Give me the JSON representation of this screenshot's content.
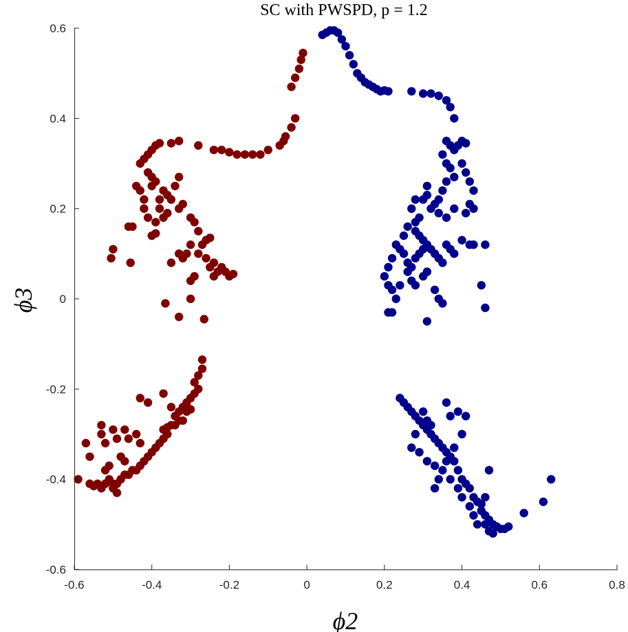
{
  "chart_data": {
    "type": "scatter",
    "title": "SC with PWSPD, p = 1.2",
    "xlabel": "ϕ2",
    "ylabel": "ϕ3",
    "xlim": [
      -0.6,
      0.8
    ],
    "ylim": [
      -0.6,
      0.6
    ],
    "x_ticks": [
      "-0.6",
      "-0.4",
      "-0.2",
      "0",
      "0.2",
      "0.4",
      "0.6",
      "0.8"
    ],
    "y_ticks": [
      "-0.6",
      "-0.4",
      "-0.2",
      "0",
      "0.2",
      "0.4",
      "0.6"
    ],
    "grid": false,
    "series": [
      {
        "color": "#7f0000",
        "points": [
          [
            -0.04,
            0.47
          ],
          [
            -0.03,
            0.49
          ],
          [
            -0.02,
            0.51
          ],
          [
            -0.015,
            0.53
          ],
          [
            -0.01,
            0.545
          ],
          [
            -0.03,
            0.4
          ],
          [
            -0.04,
            0.38
          ],
          [
            -0.055,
            0.36
          ],
          [
            -0.06,
            0.35
          ],
          [
            -0.07,
            0.34
          ],
          [
            -0.1,
            0.33
          ],
          [
            -0.12,
            0.32
          ],
          [
            -0.14,
            0.32
          ],
          [
            -0.16,
            0.32
          ],
          [
            -0.18,
            0.32
          ],
          [
            -0.2,
            0.325
          ],
          [
            -0.22,
            0.33
          ],
          [
            -0.24,
            0.33
          ],
          [
            -0.28,
            0.34
          ],
          [
            -0.33,
            0.35
          ],
          [
            -0.35,
            0.345
          ],
          [
            -0.38,
            0.345
          ],
          [
            -0.39,
            0.34
          ],
          [
            -0.4,
            0.33
          ],
          [
            -0.41,
            0.32
          ],
          [
            -0.42,
            0.31
          ],
          [
            -0.43,
            0.3
          ],
          [
            -0.41,
            0.28
          ],
          [
            -0.4,
            0.27
          ],
          [
            -0.39,
            0.26
          ],
          [
            -0.37,
            0.24
          ],
          [
            -0.36,
            0.23
          ],
          [
            -0.38,
            0.22
          ],
          [
            -0.4,
            0.25
          ],
          [
            -0.42,
            0.2
          ],
          [
            -0.42,
            0.22
          ],
          [
            -0.43,
            0.24
          ],
          [
            -0.44,
            0.25
          ],
          [
            -0.35,
            0.22
          ],
          [
            -0.34,
            0.25
          ],
          [
            -0.33,
            0.27
          ],
          [
            -0.32,
            0.21
          ],
          [
            -0.33,
            0.2
          ],
          [
            -0.36,
            0.19
          ],
          [
            -0.38,
            0.2
          ],
          [
            -0.37,
            0.18
          ],
          [
            -0.39,
            0.17
          ],
          [
            -0.41,
            0.18
          ],
          [
            -0.4,
            0.14
          ],
          [
            -0.39,
            0.145
          ],
          [
            -0.45,
            0.16
          ],
          [
            -0.46,
            0.16
          ],
          [
            -0.3,
            0.18
          ],
          [
            -0.29,
            0.17
          ],
          [
            -0.28,
            0.15
          ],
          [
            -0.27,
            0.12
          ],
          [
            -0.3,
            0.12
          ],
          [
            -0.33,
            0.1
          ],
          [
            -0.35,
            0.08
          ],
          [
            -0.32,
            0.09
          ],
          [
            -0.31,
            0.1
          ],
          [
            -0.28,
            0.1
          ],
          [
            -0.26,
            0.09
          ],
          [
            -0.25,
            0.07
          ],
          [
            -0.24,
            0.08
          ],
          [
            -0.22,
            0.07
          ],
          [
            -0.21,
            0.06
          ],
          [
            -0.23,
            0.06
          ],
          [
            -0.24,
            0.05
          ],
          [
            -0.26,
            0.13
          ],
          [
            -0.25,
            0.135
          ],
          [
            -0.29,
            0.05
          ],
          [
            -0.3,
            0.04
          ],
          [
            -0.19,
            0.055
          ],
          [
            -0.2,
            0.05
          ],
          [
            -0.5,
            0.11
          ],
          [
            -0.505,
            0.09
          ],
          [
            -0.455,
            0.08
          ],
          [
            -0.365,
            -0.01
          ],
          [
            -0.33,
            -0.04
          ],
          [
            -0.265,
            -0.045
          ],
          [
            -0.3,
            0.0
          ],
          [
            -0.27,
            -0.135
          ],
          [
            -0.27,
            -0.155
          ],
          [
            -0.28,
            -0.17
          ],
          [
            -0.29,
            -0.185
          ],
          [
            -0.28,
            -0.2
          ],
          [
            -0.29,
            -0.21
          ],
          [
            -0.3,
            -0.22
          ],
          [
            -0.31,
            -0.23
          ],
          [
            -0.32,
            -0.24
          ],
          [
            -0.3,
            -0.245
          ],
          [
            -0.31,
            -0.25
          ],
          [
            -0.33,
            -0.25
          ],
          [
            -0.34,
            -0.26
          ],
          [
            -0.32,
            -0.27
          ],
          [
            -0.33,
            -0.27
          ],
          [
            -0.35,
            -0.28
          ],
          [
            -0.36,
            -0.285
          ],
          [
            -0.37,
            -0.29
          ],
          [
            -0.36,
            -0.3
          ],
          [
            -0.37,
            -0.31
          ],
          [
            -0.38,
            -0.32
          ],
          [
            -0.39,
            -0.33
          ],
          [
            -0.4,
            -0.34
          ],
          [
            -0.41,
            -0.35
          ],
          [
            -0.42,
            -0.36
          ],
          [
            -0.43,
            -0.37
          ],
          [
            -0.44,
            -0.38
          ],
          [
            -0.45,
            -0.38
          ],
          [
            -0.46,
            -0.39
          ],
          [
            -0.47,
            -0.39
          ],
          [
            -0.48,
            -0.4
          ],
          [
            -0.49,
            -0.41
          ],
          [
            -0.5,
            -0.41
          ],
          [
            -0.51,
            -0.4
          ],
          [
            -0.52,
            -0.41
          ],
          [
            -0.53,
            -0.42
          ],
          [
            -0.54,
            -0.41
          ],
          [
            -0.55,
            -0.415
          ],
          [
            -0.56,
            -0.41
          ],
          [
            -0.52,
            -0.32
          ],
          [
            -0.53,
            -0.3
          ],
          [
            -0.53,
            -0.28
          ],
          [
            -0.5,
            -0.29
          ],
          [
            -0.49,
            -0.31
          ],
          [
            -0.47,
            -0.29
          ],
          [
            -0.46,
            -0.31
          ],
          [
            -0.44,
            -0.3
          ],
          [
            -0.43,
            -0.32
          ],
          [
            -0.48,
            -0.35
          ],
          [
            -0.47,
            -0.36
          ],
          [
            -0.51,
            -0.37
          ],
          [
            -0.52,
            -0.38
          ],
          [
            -0.5,
            -0.42
          ],
          [
            -0.49,
            -0.43
          ],
          [
            -0.56,
            -0.35
          ],
          [
            -0.57,
            -0.32
          ],
          [
            -0.59,
            -0.4
          ],
          [
            -0.43,
            -0.22
          ],
          [
            -0.41,
            -0.23
          ],
          [
            -0.37,
            -0.21
          ],
          [
            -0.35,
            -0.24
          ],
          [
            -0.34,
            -0.28
          ]
        ]
      },
      {
        "color": "#00008b",
        "points": [
          [
            0.04,
            0.585
          ],
          [
            0.05,
            0.59
          ],
          [
            0.06,
            0.595
          ],
          [
            0.07,
            0.595
          ],
          [
            0.08,
            0.59
          ],
          [
            0.09,
            0.575
          ],
          [
            0.1,
            0.56
          ],
          [
            0.11,
            0.54
          ],
          [
            0.12,
            0.52
          ],
          [
            0.13,
            0.5
          ],
          [
            0.14,
            0.49
          ],
          [
            0.15,
            0.48
          ],
          [
            0.16,
            0.475
          ],
          [
            0.17,
            0.47
          ],
          [
            0.18,
            0.465
          ],
          [
            0.19,
            0.46
          ],
          [
            0.2,
            0.462
          ],
          [
            0.21,
            0.46
          ],
          [
            0.27,
            0.46
          ],
          [
            0.3,
            0.455
          ],
          [
            0.32,
            0.455
          ],
          [
            0.34,
            0.45
          ],
          [
            0.36,
            0.44
          ],
          [
            0.37,
            0.425
          ],
          [
            0.38,
            0.4
          ],
          [
            0.36,
            0.35
          ],
          [
            0.37,
            0.34
          ],
          [
            0.38,
            0.33
          ],
          [
            0.39,
            0.34
          ],
          [
            0.4,
            0.35
          ],
          [
            0.41,
            0.345
          ],
          [
            0.35,
            0.32
          ],
          [
            0.36,
            0.3
          ],
          [
            0.37,
            0.29
          ],
          [
            0.38,
            0.27
          ],
          [
            0.4,
            0.3
          ],
          [
            0.41,
            0.28
          ],
          [
            0.42,
            0.26
          ],
          [
            0.43,
            0.24
          ],
          [
            0.42,
            0.21
          ],
          [
            0.41,
            0.19
          ],
          [
            0.43,
            0.2
          ],
          [
            0.36,
            0.26
          ],
          [
            0.35,
            0.24
          ],
          [
            0.34,
            0.22
          ],
          [
            0.33,
            0.21
          ],
          [
            0.32,
            0.2
          ],
          [
            0.34,
            0.19
          ],
          [
            0.36,
            0.18
          ],
          [
            0.38,
            0.2
          ],
          [
            0.31,
            0.25
          ],
          [
            0.31,
            0.23
          ],
          [
            0.3,
            0.22
          ],
          [
            0.28,
            0.22
          ],
          [
            0.27,
            0.2
          ],
          [
            0.29,
            0.18
          ],
          [
            0.28,
            0.17
          ],
          [
            0.26,
            0.16
          ],
          [
            0.28,
            0.15
          ],
          [
            0.29,
            0.14
          ],
          [
            0.3,
            0.13
          ],
          [
            0.31,
            0.12
          ],
          [
            0.32,
            0.11
          ],
          [
            0.33,
            0.1
          ],
          [
            0.34,
            0.09
          ],
          [
            0.35,
            0.08
          ],
          [
            0.36,
            0.12
          ],
          [
            0.37,
            0.11
          ],
          [
            0.38,
            0.1
          ],
          [
            0.25,
            0.14
          ],
          [
            0.24,
            0.11
          ],
          [
            0.25,
            0.1
          ],
          [
            0.26,
            0.08
          ],
          [
            0.27,
            0.07
          ],
          [
            0.28,
            0.09
          ],
          [
            0.29,
            0.1
          ],
          [
            0.3,
            0.11
          ],
          [
            0.23,
            0.12
          ],
          [
            0.22,
            0.09
          ],
          [
            0.21,
            0.07
          ],
          [
            0.2,
            0.05
          ],
          [
            0.21,
            0.03
          ],
          [
            0.22,
            0.02
          ],
          [
            0.23,
            0.0
          ],
          [
            0.24,
            0.03
          ],
          [
            0.26,
            0.06
          ],
          [
            0.27,
            0.04
          ],
          [
            0.28,
            0.03
          ],
          [
            0.3,
            0.05
          ],
          [
            0.31,
            0.06
          ],
          [
            0.33,
            0.02
          ],
          [
            0.34,
            0.0
          ],
          [
            0.35,
            -0.01
          ],
          [
            0.4,
            0.13
          ],
          [
            0.42,
            0.12
          ],
          [
            0.43,
            0.12
          ],
          [
            0.46,
            0.12
          ],
          [
            0.45,
            0.03
          ],
          [
            0.46,
            -0.02
          ],
          [
            0.31,
            -0.05
          ],
          [
            0.22,
            -0.03
          ],
          [
            0.21,
            -0.03
          ],
          [
            0.24,
            -0.22
          ],
          [
            0.25,
            -0.23
          ],
          [
            0.26,
            -0.24
          ],
          [
            0.27,
            -0.25
          ],
          [
            0.28,
            -0.26
          ],
          [
            0.29,
            -0.27
          ],
          [
            0.3,
            -0.28
          ],
          [
            0.31,
            -0.29
          ],
          [
            0.32,
            -0.3
          ],
          [
            0.33,
            -0.31
          ],
          [
            0.34,
            -0.32
          ],
          [
            0.35,
            -0.33
          ],
          [
            0.36,
            -0.34
          ],
          [
            0.37,
            -0.35
          ],
          [
            0.38,
            -0.36
          ],
          [
            0.39,
            -0.38
          ],
          [
            0.4,
            -0.4
          ],
          [
            0.41,
            -0.41
          ],
          [
            0.42,
            -0.42
          ],
          [
            0.43,
            -0.44
          ],
          [
            0.44,
            -0.45
          ],
          [
            0.45,
            -0.47
          ],
          [
            0.46,
            -0.48
          ],
          [
            0.47,
            -0.49
          ],
          [
            0.48,
            -0.5
          ],
          [
            0.49,
            -0.505
          ],
          [
            0.5,
            -0.51
          ],
          [
            0.51,
            -0.51
          ],
          [
            0.52,
            -0.505
          ],
          [
            0.47,
            -0.515
          ],
          [
            0.48,
            -0.52
          ],
          [
            0.46,
            -0.5
          ],
          [
            0.36,
            -0.23
          ],
          [
            0.37,
            -0.26
          ],
          [
            0.39,
            -0.25
          ],
          [
            0.41,
            -0.26
          ],
          [
            0.4,
            -0.3
          ],
          [
            0.38,
            -0.33
          ],
          [
            0.36,
            -0.36
          ],
          [
            0.35,
            -0.38
          ],
          [
            0.34,
            -0.4
          ],
          [
            0.33,
            -0.42
          ],
          [
            0.37,
            -0.4
          ],
          [
            0.39,
            -0.42
          ],
          [
            0.4,
            -0.44
          ],
          [
            0.42,
            -0.46
          ],
          [
            0.43,
            -0.48
          ],
          [
            0.44,
            -0.5
          ],
          [
            0.3,
            -0.25
          ],
          [
            0.31,
            -0.27
          ],
          [
            0.32,
            -0.28
          ],
          [
            0.28,
            -0.3
          ],
          [
            0.27,
            -0.33
          ],
          [
            0.29,
            -0.34
          ],
          [
            0.31,
            -0.36
          ],
          [
            0.33,
            -0.37
          ],
          [
            0.47,
            -0.38
          ],
          [
            0.46,
            -0.44
          ],
          [
            0.56,
            -0.475
          ],
          [
            0.61,
            -0.45
          ],
          [
            0.63,
            -0.4
          ],
          [
            0.45,
            -0.455
          ]
        ]
      }
    ]
  }
}
